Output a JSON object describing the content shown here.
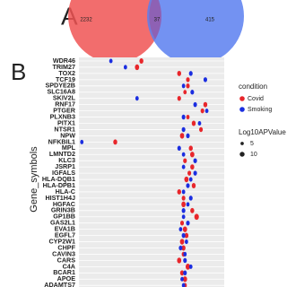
{
  "panels": [
    "A",
    "B"
  ],
  "chart_data": [
    {
      "type": "venn",
      "values": [
        2232,
        37,
        415
      ],
      "colors": [
        "#f05454",
        "#5b7ff0"
      ]
    },
    {
      "type": "scatter",
      "y_label": "Gene_symbols",
      "xlim": [
        0,
        100
      ],
      "grid": true,
      "categories": [
        "WDR46",
        "TRIM27",
        "TOX2",
        "TCF19",
        "SPDYE2B",
        "SLC16A8",
        "SKIV2L",
        "RNF17",
        "PTGER",
        "PLXNB3",
        "PITX1",
        "NTSR1",
        "NPW",
        "NFKBIL1",
        "MPL",
        "LMNTD2",
        "KLC3",
        "JSRP1",
        "IGFALS",
        "HLA-DQB1",
        "HLA-DPB1",
        "HLA-C",
        "HIST1H4J",
        "HGFAC",
        "GRIN3B",
        "GP1BB",
        "GAS2L1",
        "EVA1B",
        "EGFL7",
        "CYP2W1",
        "CHPF",
        "CAVIN3",
        "CARS",
        "C4A",
        "BCAR1",
        "APOE",
        "ADAMTS7"
      ],
      "series": [
        {
          "name": "Covid",
          "color": "#e8262b",
          "x": [
            43,
            40,
            69,
            75,
            75,
            73,
            69,
            87,
            85,
            75,
            79,
            84,
            71,
            25,
            77,
            78,
            73,
            78,
            76,
            74,
            79,
            69,
            72,
            72,
            78,
            81,
            71,
            73,
            74,
            71,
            72,
            72,
            69,
            75,
            71,
            73,
            73
          ],
          "size": [
            8,
            9,
            8,
            7,
            7,
            6,
            7,
            8,
            7,
            6,
            8,
            7,
            9,
            8,
            8,
            9,
            7,
            8,
            7,
            9,
            8,
            8,
            7,
            9,
            8,
            10,
            7,
            9,
            8,
            9,
            8,
            7,
            9,
            10,
            8,
            9,
            7
          ]
        },
        {
          "name": "Smoking",
          "color": "#1b2ee0",
          "x": [
            22,
            32,
            77,
            87,
            72,
            78,
            40,
            80,
            88,
            72,
            83,
            72,
            75,
            2,
            69,
            72,
            80,
            72,
            80,
            77,
            75,
            72,
            77,
            75,
            72,
            72,
            75,
            70,
            72,
            74,
            70,
            73,
            73,
            77,
            73,
            71,
            72
          ],
          "size": [
            6,
            6,
            7,
            7,
            6,
            7,
            6,
            7,
            6,
            7,
            6,
            7,
            7,
            6,
            7,
            6,
            7,
            6,
            7,
            6,
            7,
            6,
            7,
            6,
            7,
            6,
            7,
            6,
            7,
            6,
            7,
            6,
            7,
            6,
            7,
            6,
            6
          ]
        }
      ],
      "legend_title": "condition",
      "size_title": "Log10APValue",
      "size_ticks": [
        5,
        10
      ]
    }
  ]
}
